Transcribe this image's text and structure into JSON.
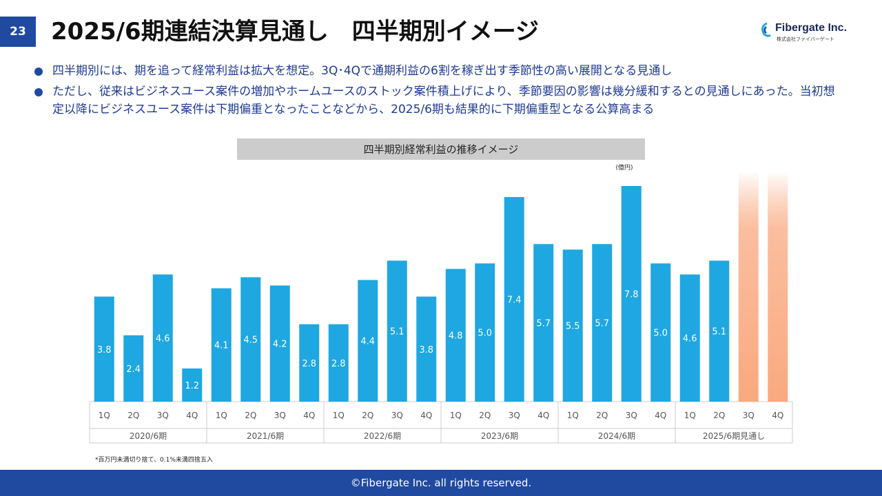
{
  "page": {
    "number": "23",
    "title": "2025/6期連結決算見通し　四半期別イメージ",
    "logo_text": "Fibergate Inc.",
    "logo_sub": "株式会社ファイバーゲート"
  },
  "bullets": [
    "四半期別には、期を追って経常利益は拡大を想定。3Q･4Qで通期利益の6割を稼ぎ出す季節性の高い展開となる見通し",
    "ただし、従来はビジネスユース案件の増加やホームユースのストック案件積上げにより、季節要因の影響は幾分緩和するとの見通しにあった。当初想定以降にビジネスユース案件は下期偏重となったことなどから、2025/6期も結果的に下期偏重型となる公算高まる"
  ],
  "note": "*百万円未満切り捨て、0.1%未満四捨五入",
  "footer": "©Fibergate Inc. all rights reserved.",
  "colors": {
    "bar": "#1ea7e1",
    "forecast": "#f9a97f",
    "accent": "#1f4aa0"
  },
  "chart_data": {
    "type": "bar",
    "title": "四半期別経常利益の推移イメージ",
    "unit": "(億円)",
    "groups": [
      {
        "label": "2020/6期",
        "quarters": [
          "1Q",
          "2Q",
          "3Q",
          "4Q"
        ],
        "values": [
          3.8,
          2.4,
          4.6,
          1.2
        ]
      },
      {
        "label": "2021/6期",
        "quarters": [
          "1Q",
          "2Q",
          "3Q",
          "4Q"
        ],
        "values": [
          4.1,
          4.5,
          4.2,
          2.8
        ]
      },
      {
        "label": "2022/6期",
        "quarters": [
          "1Q",
          "2Q",
          "3Q",
          "4Q"
        ],
        "values": [
          2.8,
          4.4,
          5.1,
          3.8
        ]
      },
      {
        "label": "2023/6期",
        "quarters": [
          "1Q",
          "2Q",
          "3Q",
          "4Q"
        ],
        "values": [
          4.8,
          5.0,
          7.4,
          5.7
        ]
      },
      {
        "label": "2024/6期",
        "quarters": [
          "1Q",
          "2Q",
          "3Q",
          "4Q"
        ],
        "values": [
          5.5,
          5.7,
          7.8,
          5.0
        ]
      },
      {
        "label": "2025/6期見通し",
        "quarters": [
          "1Q",
          "2Q",
          "3Q",
          "4Q"
        ],
        "values": [
          4.6,
          5.1,
          null,
          null
        ],
        "forecast": [
          false,
          false,
          true,
          true
        ]
      }
    ],
    "ylim": [
      0,
      8.0
    ]
  }
}
